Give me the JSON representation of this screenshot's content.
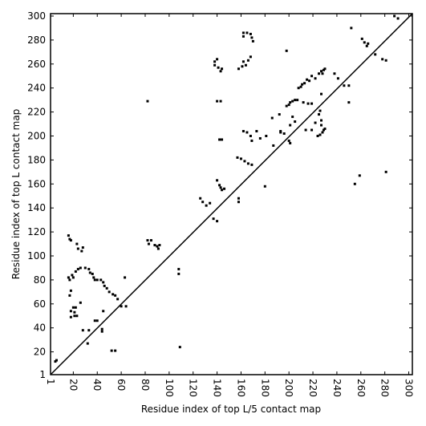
{
  "chart_data": {
    "type": "scatter",
    "xlabel": "Residue index of top L/5 contact map",
    "ylabel": "Residue index of top L contact map",
    "color": "#000000",
    "xlim": [
      1,
      303
    ],
    "ylim": [
      1,
      302
    ],
    "xticks": [
      1,
      20,
      40,
      60,
      80,
      100,
      120,
      140,
      160,
      180,
      200,
      220,
      240,
      260,
      280,
      300
    ],
    "yticks": [
      1,
      20,
      40,
      60,
      80,
      100,
      120,
      140,
      160,
      180,
      200,
      220,
      240,
      260,
      280,
      300
    ],
    "x": [
      5,
      6,
      16,
      17,
      18,
      16,
      17,
      19,
      20,
      18,
      17,
      18,
      18,
      21,
      20,
      22,
      21,
      23,
      22,
      24,
      23,
      24,
      28,
      27,
      26,
      30,
      33,
      34,
      36,
      37,
      38,
      40,
      43,
      45,
      46,
      48,
      50,
      53,
      55,
      57,
      60,
      64,
      63,
      40,
      38,
      44,
      44,
      28,
      33,
      52,
      55,
      45,
      32,
      26,
      82,
      83,
      85,
      88,
      90,
      91,
      92,
      82,
      108,
      108,
      109,
      126,
      128,
      131,
      134,
      137,
      140,
      140,
      142,
      143,
      144,
      146,
      142,
      144,
      140,
      143,
      138,
      138,
      140,
      141,
      143,
      144,
      158,
      158,
      157,
      160,
      163,
      166,
      169,
      162,
      165,
      168,
      169,
      173,
      176,
      181,
      180,
      158,
      161,
      162,
      164,
      166,
      168,
      162,
      162,
      165,
      168,
      169,
      170,
      187,
      186,
      192,
      193,
      193,
      196,
      200,
      201,
      198,
      198,
      200,
      201,
      203,
      205,
      207,
      208,
      210,
      211,
      213,
      215,
      217,
      219,
      222,
      225,
      227,
      229,
      228,
      230,
      224,
      226,
      228,
      229,
      230,
      225,
      226,
      227,
      227,
      219,
      216,
      212,
      219,
      214,
      222,
      227,
      203,
      205,
      201,
      238,
      241,
      246,
      250,
      250,
      252,
      255,
      259,
      261,
      263,
      266,
      265,
      272,
      278,
      281,
      281,
      288,
      291
    ],
    "values": [
      12,
      13,
      117,
      114,
      113,
      82,
      80,
      84,
      82,
      71,
      67,
      54,
      49,
      53,
      57,
      57,
      50,
      50,
      87,
      89,
      110,
      106,
      107,
      104,
      90,
      90,
      89,
      86,
      85,
      82,
      80,
      80,
      80,
      78,
      75,
      73,
      70,
      68,
      67,
      64,
      58,
      58,
      82,
      46,
      46,
      39,
      37,
      38,
      38,
      21,
      21,
      54,
      27,
      61,
      113,
      110,
      113,
      109,
      108,
      106,
      109,
      229,
      89,
      85,
      24,
      148,
      145,
      142,
      144,
      131,
      129,
      163,
      159,
      157,
      155,
      156,
      197,
      197,
      229,
      229,
      259,
      262,
      264,
      257,
      254,
      256,
      145,
      148,
      182,
      181,
      179,
      177,
      176,
      204,
      203,
      200,
      196,
      204,
      198,
      200,
      158,
      256,
      258,
      262,
      259,
      263,
      266,
      283,
      286,
      286,
      285,
      282,
      279,
      192,
      215,
      218,
      204,
      203,
      202,
      196,
      194,
      271,
      225,
      226,
      228,
      229,
      230,
      230,
      240,
      241,
      243,
      244,
      247,
      246,
      250,
      248,
      252,
      254,
      255,
      252,
      256,
      200,
      201,
      203,
      205,
      206,
      218,
      221,
      213,
      209,
      227,
      227,
      228,
      205,
      205,
      211,
      235,
      216,
      212,
      209,
      252,
      248,
      242,
      242,
      228,
      290,
      160,
      167,
      281,
      278,
      277,
      275,
      268,
      264,
      263,
      170,
      300,
      298
    ]
  }
}
